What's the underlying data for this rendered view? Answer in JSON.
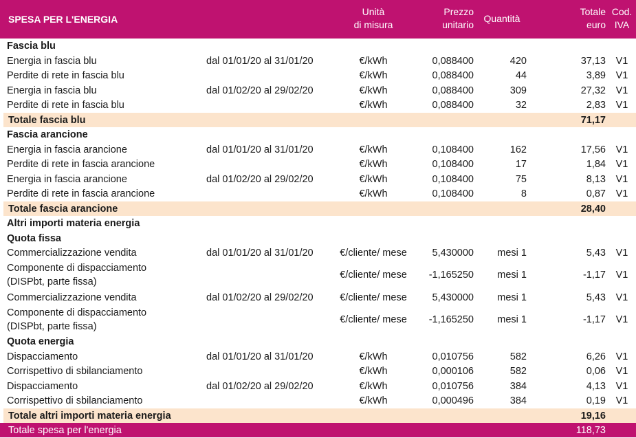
{
  "header": {
    "title": "SPESA PER L'ENERGIA",
    "unita": [
      "Unità",
      "di misura"
    ],
    "prezzo": [
      "Prezzo",
      "unitario"
    ],
    "quantita": "Quantità",
    "totale": [
      "Totale",
      "euro"
    ],
    "iva": [
      "Cod.",
      "IVA"
    ]
  },
  "rows": [
    {
      "type": "section",
      "desc": "Fascia blu"
    },
    {
      "type": "item",
      "desc": "Energia in fascia blu",
      "period": "dal 01/01/20 al 31/01/20",
      "unit": "€/kWh",
      "price": "0,088400",
      "qty": "420",
      "total": "37,13",
      "iva": "V1"
    },
    {
      "type": "item",
      "desc": "Perdite di rete in fascia blu",
      "period": "",
      "unit": "€/kWh",
      "price": "0,088400",
      "qty": "44",
      "total": "3,89",
      "iva": "V1"
    },
    {
      "type": "item",
      "desc": "Energia in fascia blu",
      "period": "dal 01/02/20 al 29/02/20",
      "unit": "€/kWh",
      "price": "0,088400",
      "qty": "309",
      "total": "27,32",
      "iva": "V1"
    },
    {
      "type": "item",
      "desc": "Perdite di rete in fascia blu",
      "period": "",
      "unit": "€/kWh",
      "price": "0,088400",
      "qty": "32",
      "total": "2,83",
      "iva": "V1"
    },
    {
      "type": "subtotal",
      "desc": "Totale fascia blu",
      "total": "71,17"
    },
    {
      "type": "section",
      "desc": "Fascia arancione"
    },
    {
      "type": "item",
      "desc": "Energia in fascia arancione",
      "period": "dal 01/01/20 al 31/01/20",
      "unit": "€/kWh",
      "price": "0,108400",
      "qty": "162",
      "total": "17,56",
      "iva": "V1"
    },
    {
      "type": "item",
      "desc": "Perdite di rete in fascia arancione",
      "period": "",
      "unit": "€/kWh",
      "price": "0,108400",
      "qty": "17",
      "total": "1,84",
      "iva": "V1"
    },
    {
      "type": "item",
      "desc": "Energia in fascia arancione",
      "period": "dal 01/02/20 al 29/02/20",
      "unit": "€/kWh",
      "price": "0,108400",
      "qty": "75",
      "total": "8,13",
      "iva": "V1"
    },
    {
      "type": "item",
      "desc": "Perdite di rete in fascia arancione",
      "period": "",
      "unit": "€/kWh",
      "price": "0,108400",
      "qty": "8",
      "total": "0,87",
      "iva": "V1"
    },
    {
      "type": "subtotal",
      "desc": "Totale fascia arancione",
      "total": "28,40"
    },
    {
      "type": "section",
      "desc": "Altri importi materia energia"
    },
    {
      "type": "section",
      "desc": "Quota fissa"
    },
    {
      "type": "item",
      "desc": "Commercializzazione vendita",
      "period": "dal 01/01/20 al 31/01/20",
      "unit": "€/cliente/ mese",
      "price": "5,430000",
      "qty": "mesi 1",
      "total": "5,43",
      "iva": "V1"
    },
    {
      "type": "item2",
      "desc": [
        "Componente di dispacciamento",
        "(DISPbt, parte fissa)"
      ],
      "period": "",
      "unit": "€/cliente/ mese",
      "price": "-1,165250",
      "qty": "mesi 1",
      "total": "-1,17",
      "iva": "V1"
    },
    {
      "type": "item",
      "desc": "Commercializzazione vendita",
      "period": "dal 01/02/20 al 29/02/20",
      "unit": "€/cliente/ mese",
      "price": "5,430000",
      "qty": "mesi 1",
      "total": "5,43",
      "iva": "V1"
    },
    {
      "type": "item2",
      "desc": [
        "Componente di dispacciamento",
        "(DISPbt, parte fissa)"
      ],
      "period": "",
      "unit": "€/cliente/ mese",
      "price": "-1,165250",
      "qty": "mesi 1",
      "total": "-1,17",
      "iva": "V1"
    },
    {
      "type": "section",
      "desc": "Quota energia"
    },
    {
      "type": "item",
      "desc": "Dispacciamento",
      "period": "dal 01/01/20 al 31/01/20",
      "unit": "€/kWh",
      "price": "0,010756",
      "qty": "582",
      "total": "6,26",
      "iva": "V1"
    },
    {
      "type": "item",
      "desc": "Corrispettivo di sbilanciamento",
      "period": "",
      "unit": "€/kWh",
      "price": "0,000106",
      "qty": "582",
      "total": "0,06",
      "iva": "V1"
    },
    {
      "type": "item",
      "desc": "Dispacciamento",
      "period": "dal 01/02/20 al 29/02/20",
      "unit": "€/kWh",
      "price": "0,010756",
      "qty": "384",
      "total": "4,13",
      "iva": "V1"
    },
    {
      "type": "item",
      "desc": "Corrispettivo di sbilanciamento",
      "period": "",
      "unit": "€/kWh",
      "price": "0,000496",
      "qty": "384",
      "total": "0,19",
      "iva": "V1"
    },
    {
      "type": "subtotal",
      "desc": "Totale altri importi materia energia",
      "total": "19,16"
    },
    {
      "type": "grand",
      "desc": "Totale spesa per l'energia",
      "total": "118,73"
    }
  ]
}
